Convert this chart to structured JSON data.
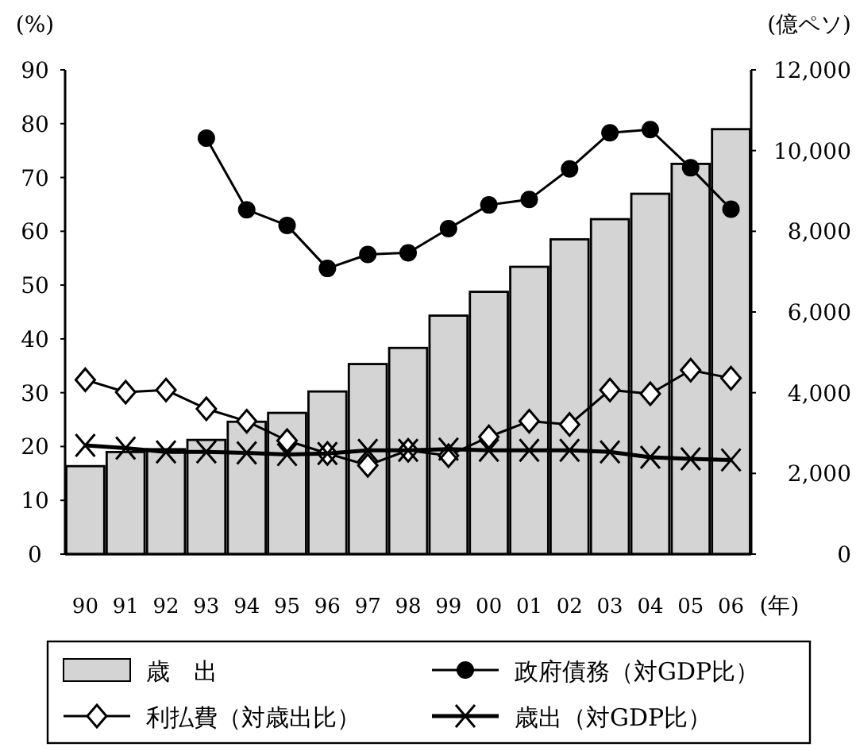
{
  "chart_data": {
    "type": "bar",
    "xlabel": "(年)",
    "ylabel": "(%)",
    "y2label": "(億ペソ)",
    "categories": [
      "90",
      "91",
      "92",
      "93",
      "94",
      "95",
      "96",
      "97",
      "98",
      "99",
      "00",
      "01",
      "02",
      "03",
      "04",
      "05",
      "06"
    ],
    "ylim": [
      0,
      90
    ],
    "yticks": [
      0,
      10,
      20,
      30,
      40,
      50,
      60,
      70,
      80,
      90
    ],
    "y2lim": [
      0,
      12000
    ],
    "y2ticks": [
      0,
      {
        "value": 2000,
        "label": "2,000"
      },
      {
        "value": 4000,
        "label": "4,000"
      },
      {
        "value": 6000,
        "label": "6,000"
      },
      {
        "value": 8000,
        "label": "8,000"
      },
      {
        "value": 10000,
        "label": "10,000"
      },
      {
        "value": 12000,
        "label": "12,000"
      }
    ],
    "legend": "bottom",
    "series": [
      {
        "name": "歳　出",
        "axis": "y2",
        "color": "#d4d4d4",
        "values": [
          2180,
          2530,
          2600,
          2830,
          3280,
          3500,
          4030,
          4710,
          5110,
          5910,
          6500,
          7120,
          7800,
          8300,
          8930,
          9670,
          10530
        ]
      },
      {
        "name": "政府債務（対GDP比）",
        "type": "line",
        "marker": "circle",
        "color": "#000000",
        "values": [
          null,
          null,
          null,
          77.3,
          64.0,
          61.1,
          53.1,
          55.7,
          56.0,
          60.5,
          64.9,
          65.9,
          71.6,
          78.3,
          78.9,
          71.8,
          64.1
        ]
      },
      {
        "name": "利払費（対歳出比）",
        "type": "line",
        "marker": "diamond",
        "color": "#000000",
        "values": [
          32.4,
          30.1,
          30.5,
          27.0,
          24.7,
          21.1,
          18.7,
          16.5,
          19.3,
          18.3,
          21.8,
          24.7,
          24.1,
          30.5,
          29.8,
          34.2,
          32.7
        ]
      },
      {
        "name": "歳出（対GDP比）",
        "type": "line",
        "marker": "cross",
        "color": "#000000",
        "values": [
          20.2,
          19.7,
          19.0,
          19.0,
          18.8,
          18.5,
          18.7,
          19.3,
          19.3,
          19.5,
          19.3,
          19.3,
          19.3,
          19.0,
          18.0,
          17.7,
          17.5
        ]
      }
    ]
  }
}
